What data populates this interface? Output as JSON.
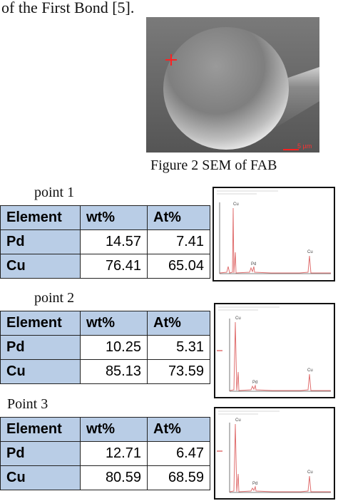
{
  "header_fragment": "of the First Bond [5].",
  "figure_caption": "Figure 2 SEM of FAB",
  "sem_scale_label": "5 µm",
  "tables": [
    {
      "label": "point 1",
      "headers": [
        "Element",
        "wt%",
        "At%"
      ],
      "rows": [
        {
          "element": "Pd",
          "wt": "14.57",
          "at": "7.41"
        },
        {
          "element": "Cu",
          "wt": "76.41",
          "at": "65.04"
        }
      ]
    },
    {
      "label": "point 2",
      "headers": [
        "Element",
        "wt%",
        "At%"
      ],
      "rows": [
        {
          "element": "Pd",
          "wt": "10.25",
          "at": "5.31"
        },
        {
          "element": "Cu",
          "wt": "85.13",
          "at": "73.59"
        }
      ]
    },
    {
      "label": "Point 3",
      "headers": [
        "Element",
        "wt%",
        "At%"
      ],
      "rows": [
        {
          "element": "Pd",
          "wt": "12.71",
          "at": "6.47"
        },
        {
          "element": "Cu",
          "wt": "80.59",
          "at": "68.59"
        }
      ]
    }
  ],
  "spectrum_peak_labels": [
    "Cu",
    "Pd",
    "Cu"
  ],
  "colors": {
    "header_fill": "#b9cde6",
    "spectrum_line": "#e07070",
    "sem_background": "#6f6f6f"
  }
}
